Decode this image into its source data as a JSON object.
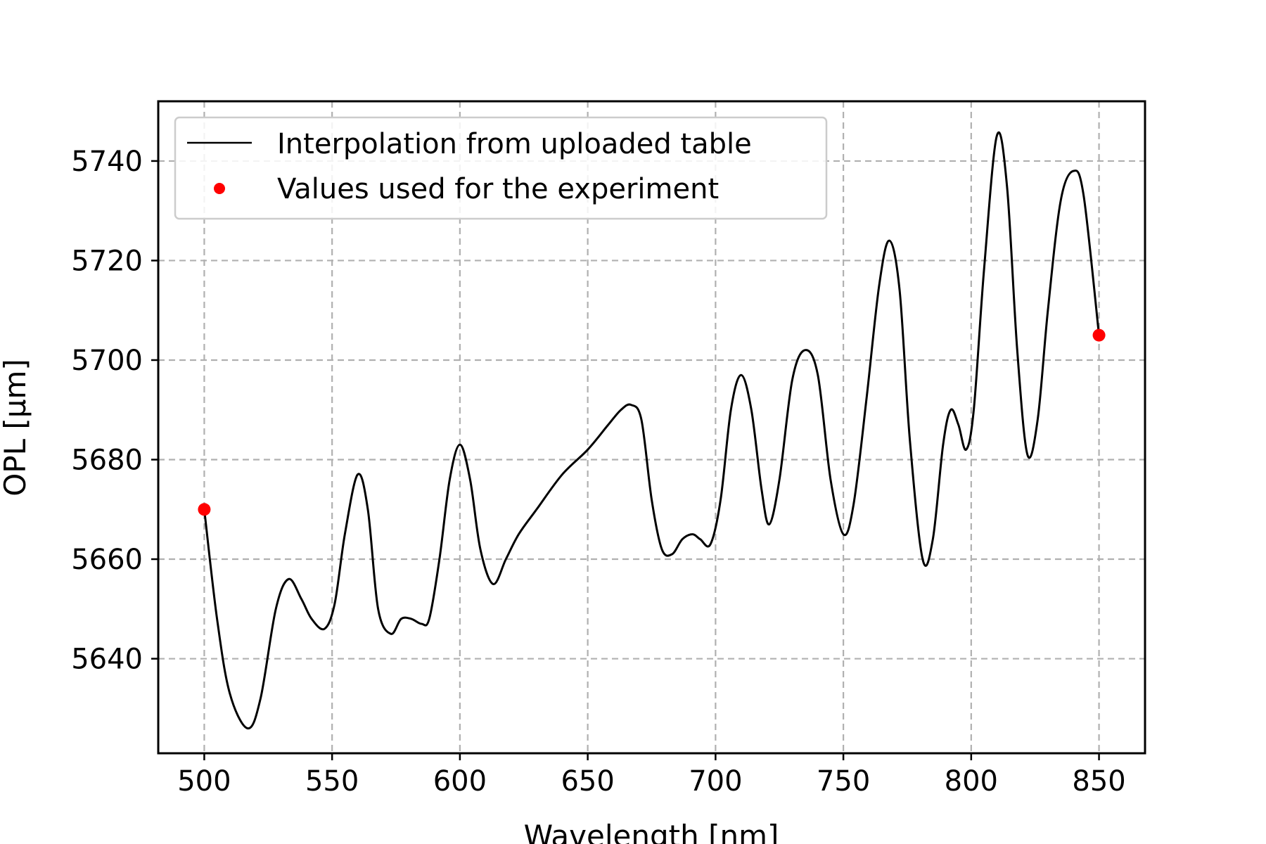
{
  "chart_data": {
    "type": "line",
    "title": "",
    "xlabel": "Wavelength [nm]",
    "ylabel": "OPL [μm]",
    "xlim": [
      482,
      868
    ],
    "ylim": [
      5621,
      5752
    ],
    "grid": true,
    "legend_position": "top-left",
    "x_ticks": [
      500,
      550,
      600,
      650,
      700,
      750,
      800,
      850
    ],
    "y_ticks": [
      5640,
      5660,
      5680,
      5700,
      5720,
      5740
    ],
    "series": [
      {
        "name": "Interpolation from uploaded table",
        "kind": "line",
        "color": "#000000",
        "x": [
          500,
          505,
          510,
          517,
          522,
          528,
          533,
          538,
          542,
          547,
          551,
          555,
          560,
          564,
          568,
          573,
          577,
          581,
          585,
          588,
          592,
          596,
          600,
          604,
          608,
          613,
          618,
          623,
          630,
          640,
          650,
          658,
          663,
          667,
          671,
          675,
          679,
          683,
          687,
          691,
          694,
          698,
          702,
          706,
          710,
          714,
          718,
          721,
          725,
          730,
          735,
          740,
          745,
          750,
          754,
          759,
          764,
          768,
          772,
          776,
          781,
          785,
          789,
          792,
          795,
          798,
          801,
          805,
          810,
          814,
          818,
          822,
          826,
          830,
          835,
          840,
          844,
          850
        ],
        "y": [
          5670,
          5648,
          5633,
          5626,
          5632,
          5650,
          5656,
          5652,
          5648,
          5646,
          5651,
          5665,
          5677,
          5670,
          5650,
          5645,
          5648,
          5648,
          5647,
          5648,
          5660,
          5676,
          5683,
          5676,
          5662,
          5655,
          5660,
          5665,
          5670,
          5677,
          5682,
          5687,
          5690,
          5691,
          5688,
          5672,
          5662,
          5661,
          5664,
          5665,
          5664,
          5663,
          5672,
          5690,
          5697,
          5690,
          5674,
          5667,
          5676,
          5696,
          5702,
          5697,
          5676,
          5665,
          5671,
          5692,
          5715,
          5724,
          5714,
          5684,
          5660,
          5664,
          5683,
          5690,
          5687,
          5682,
          5690,
          5718,
          5745,
          5735,
          5702,
          5681,
          5688,
          5710,
          5732,
          5738,
          5733,
          5705
        ]
      },
      {
        "name": "Values used for the experiment",
        "kind": "scatter",
        "color": "#ff0000",
        "x": [
          500,
          850
        ],
        "y": [
          5670,
          5705
        ]
      }
    ]
  }
}
